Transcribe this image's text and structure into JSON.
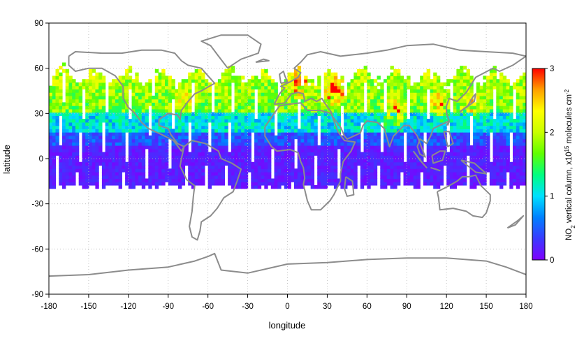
{
  "map": {
    "x_axis": {
      "label": "longitude",
      "range": [
        -180,
        180
      ],
      "ticks": [
        "-180",
        "-150",
        "-120",
        "-90",
        "-60",
        "-30",
        "0",
        "30",
        "60",
        "90",
        "120",
        "150",
        "180"
      ]
    },
    "y_axis": {
      "label": "latitude",
      "range": [
        -90,
        90
      ],
      "ticks": [
        "90",
        "60",
        "30",
        "0",
        "-30",
        "-60",
        "-90"
      ]
    },
    "grid": "dotted",
    "coastline_color": "#8c8c8c",
    "colorbar": {
      "title_prefix": "NO",
      "title_sub": "2",
      "title_mid": " vertical column, x10",
      "title_sup": "15",
      "title_mid2": " molecules cm",
      "title_sup2": "-2",
      "range": [
        0,
        3
      ],
      "ticks": [
        "0",
        "1",
        "2",
        "3"
      ],
      "colors": [
        "#7f00ff",
        "#3a3aff",
        "#0080ff",
        "#00e0ff",
        "#00ff80",
        "#60ff00",
        "#c8ff00",
        "#ffff00",
        "#ffa000",
        "#ff0000"
      ]
    },
    "data_coverage": {
      "lat_min": -22,
      "lat_max": 68
    },
    "orbit_gaps_lon": [
      -173,
      -157,
      -140,
      -122,
      -106,
      -89,
      -75,
      -60,
      -45,
      -27,
      -11,
      6,
      22,
      39,
      55,
      70,
      88,
      103,
      120,
      137,
      153,
      168
    ]
  }
}
